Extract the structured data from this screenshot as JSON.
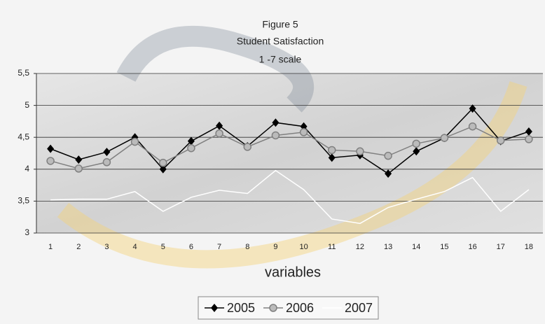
{
  "chart_data": {
    "type": "line",
    "title": "Figure 5",
    "subtitle": "Student Satisfaction",
    "annotation": "1 -7 scale",
    "x_label": "variables",
    "categories": [
      "1",
      "2",
      "3",
      "4",
      "5",
      "6",
      "7",
      "8",
      "9",
      "10",
      "11",
      "12",
      "13",
      "14",
      "15",
      "16",
      "17",
      "18"
    ],
    "series": [
      {
        "name": "2005",
        "color": "#000000",
        "marker": "diamond",
        "values": [
          4.32,
          4.15,
          4.27,
          4.5,
          4.0,
          4.44,
          4.68,
          4.36,
          4.73,
          4.67,
          4.18,
          4.22,
          3.93,
          4.28,
          4.49,
          4.95,
          4.44,
          4.59
        ]
      },
      {
        "name": "2006",
        "color": "#808080",
        "marker": "circle",
        "values": [
          4.13,
          4.01,
          4.11,
          4.43,
          4.1,
          4.33,
          4.56,
          4.35,
          4.53,
          4.58,
          4.3,
          4.28,
          4.21,
          4.4,
          4.49,
          4.67,
          4.45,
          4.47
        ]
      },
      {
        "name": "2007",
        "color": "#ffffff",
        "marker": "none",
        "values": [
          3.52,
          3.53,
          3.53,
          3.65,
          3.34,
          3.56,
          3.67,
          3.62,
          3.98,
          3.68,
          3.22,
          3.15,
          3.4,
          3.53,
          3.65,
          3.87,
          3.34,
          3.68
        ]
      }
    ],
    "ylim": [
      3,
      5.5
    ],
    "yticks": [
      3,
      {
        "value": 3.5,
        "label": "3,5"
      },
      4,
      {
        "value": 4.5,
        "label": "4,5"
      },
      5,
      {
        "value": 5.5,
        "label": "5,5"
      }
    ],
    "grid": true,
    "legend": "bottom"
  }
}
